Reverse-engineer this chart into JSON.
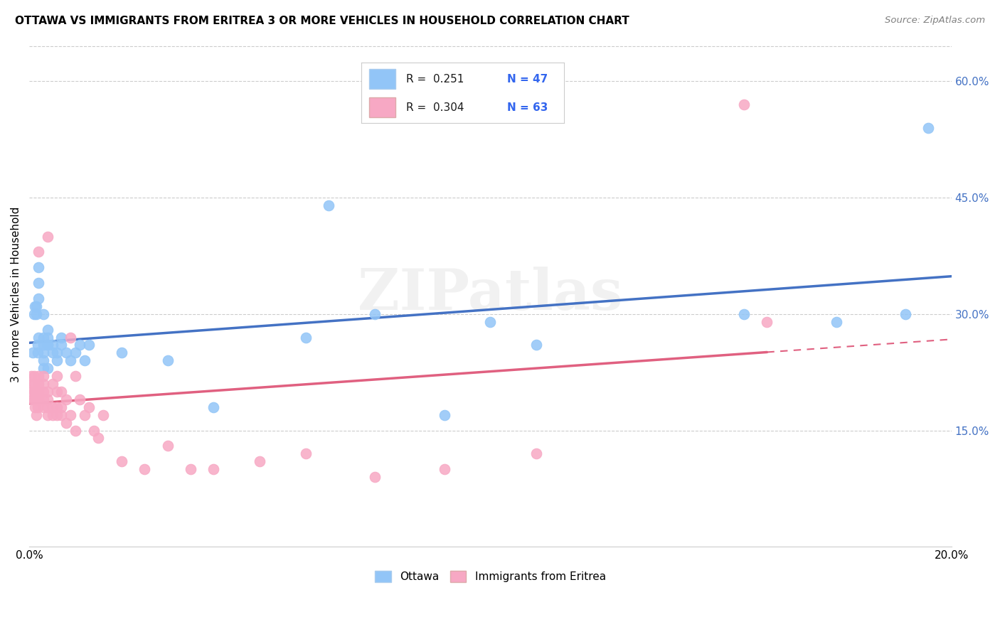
{
  "title": "OTTAWA VS IMMIGRANTS FROM ERITREA 3 OR MORE VEHICLES IN HOUSEHOLD CORRELATION CHART",
  "source": "Source: ZipAtlas.com",
  "ylabel": "3 or more Vehicles in Household",
  "x_min": 0.0,
  "x_max": 0.2,
  "y_min": 0.0,
  "y_max": 0.65,
  "x_ticks": [
    0.0,
    0.04,
    0.08,
    0.12,
    0.16,
    0.2
  ],
  "x_tick_labels": [
    "0.0%",
    "",
    "",
    "",
    "",
    "20.0%"
  ],
  "y_ticks_right": [
    0.15,
    0.3,
    0.45,
    0.6
  ],
  "y_tick_labels_right": [
    "15.0%",
    "30.0%",
    "45.0%",
    "60.0%"
  ],
  "color_ottawa": "#92C5F7",
  "color_eritrea": "#F7A8C4",
  "trend_color_ottawa": "#4472C4",
  "trend_color_eritrea": "#E06080",
  "watermark": "ZIPatlas",
  "ottawa_x": [
    0.0008,
    0.001,
    0.0012,
    0.0015,
    0.0015,
    0.0018,
    0.0018,
    0.002,
    0.002,
    0.002,
    0.002,
    0.003,
    0.003,
    0.003,
    0.003,
    0.003,
    0.003,
    0.004,
    0.004,
    0.004,
    0.004,
    0.004,
    0.005,
    0.005,
    0.006,
    0.006,
    0.007,
    0.007,
    0.008,
    0.009,
    0.01,
    0.011,
    0.012,
    0.013,
    0.02,
    0.03,
    0.04,
    0.06,
    0.065,
    0.075,
    0.09,
    0.1,
    0.11,
    0.155,
    0.175,
    0.19,
    0.195
  ],
  "ottawa_y": [
    0.25,
    0.3,
    0.31,
    0.3,
    0.31,
    0.25,
    0.26,
    0.36,
    0.34,
    0.32,
    0.27,
    0.23,
    0.24,
    0.25,
    0.26,
    0.27,
    0.3,
    0.23,
    0.26,
    0.28,
    0.27,
    0.26,
    0.25,
    0.26,
    0.24,
    0.25,
    0.26,
    0.27,
    0.25,
    0.24,
    0.25,
    0.26,
    0.24,
    0.26,
    0.25,
    0.24,
    0.18,
    0.27,
    0.44,
    0.3,
    0.17,
    0.29,
    0.26,
    0.3,
    0.29,
    0.3,
    0.54
  ],
  "eritrea_x": [
    0.0005,
    0.0005,
    0.0008,
    0.0008,
    0.001,
    0.001,
    0.001,
    0.001,
    0.0012,
    0.0012,
    0.0015,
    0.0015,
    0.0018,
    0.0018,
    0.002,
    0.002,
    0.002,
    0.002,
    0.002,
    0.003,
    0.003,
    0.003,
    0.003,
    0.003,
    0.004,
    0.004,
    0.004,
    0.004,
    0.004,
    0.005,
    0.005,
    0.005,
    0.006,
    0.006,
    0.006,
    0.006,
    0.007,
    0.007,
    0.007,
    0.008,
    0.008,
    0.009,
    0.009,
    0.01,
    0.01,
    0.011,
    0.012,
    0.013,
    0.014,
    0.015,
    0.016,
    0.02,
    0.025,
    0.03,
    0.035,
    0.04,
    0.05,
    0.06,
    0.075,
    0.09,
    0.11,
    0.155,
    0.16
  ],
  "eritrea_y": [
    0.22,
    0.2,
    0.19,
    0.21,
    0.19,
    0.2,
    0.21,
    0.22,
    0.18,
    0.2,
    0.17,
    0.19,
    0.18,
    0.2,
    0.19,
    0.2,
    0.21,
    0.22,
    0.38,
    0.18,
    0.19,
    0.2,
    0.21,
    0.22,
    0.17,
    0.18,
    0.19,
    0.2,
    0.4,
    0.17,
    0.18,
    0.21,
    0.17,
    0.18,
    0.2,
    0.22,
    0.17,
    0.18,
    0.2,
    0.16,
    0.19,
    0.17,
    0.27,
    0.15,
    0.22,
    0.19,
    0.17,
    0.18,
    0.15,
    0.14,
    0.17,
    0.11,
    0.1,
    0.13,
    0.1,
    0.1,
    0.11,
    0.12,
    0.09,
    0.1,
    0.12,
    0.57,
    0.29
  ]
}
